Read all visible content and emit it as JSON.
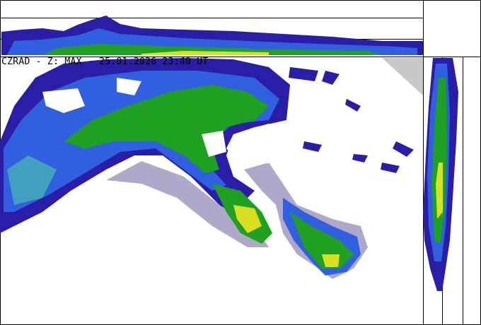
{
  "title": "CZRAD - Z: MAX - 25.01.2026 23:40 UT",
  "colors": {
    "weak": "#b0a8c8",
    "blue_dark": "#2a1ea8",
    "blue": "#3060e0",
    "cyan": "#40a0c0",
    "green": "#20a020",
    "yellow": "#d8e020",
    "mask": "#c8c8c8"
  }
}
